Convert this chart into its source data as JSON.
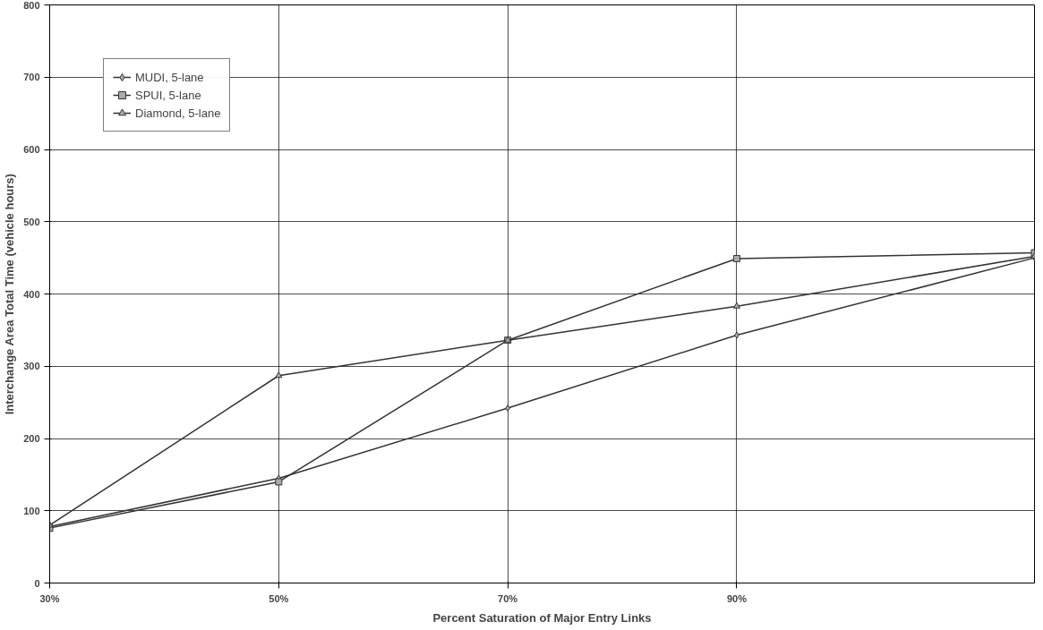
{
  "chart_data": {
    "type": "line",
    "xlabel": "Percent Saturation of Major Entry Links",
    "ylabel": "Interchange Area Total Time (vehicle hours)",
    "x": [
      30,
      50,
      70,
      90,
      116
    ],
    "series": [
      {
        "name": "MUDI, 5-lane",
        "color": "#333333",
        "marker": "diamond",
        "values": [
          78,
          145,
          242,
          343,
          450
        ]
      },
      {
        "name": "SPUI, 5-lane",
        "color": "#333333",
        "marker": "square",
        "values": [
          76,
          140,
          336,
          449,
          457
        ]
      },
      {
        "name": "Diamond, 5-lane",
        "color": "#333333",
        "marker": "triangle",
        "values": [
          80,
          287,
          336,
          383,
          452
        ]
      }
    ],
    "xlim": [
      30,
      116
    ],
    "ylim": [
      0,
      800
    ],
    "xticks": [
      {
        "value": 30,
        "label": "30%"
      },
      {
        "value": 50,
        "label": "50%"
      },
      {
        "value": 70,
        "label": "70%"
      },
      {
        "value": 90,
        "label": "90%"
      }
    ],
    "yticks": [
      0,
      100,
      200,
      300,
      400,
      500,
      600,
      700,
      800
    ],
    "grid": true,
    "legend": "top left",
    "line_style": "solid"
  }
}
